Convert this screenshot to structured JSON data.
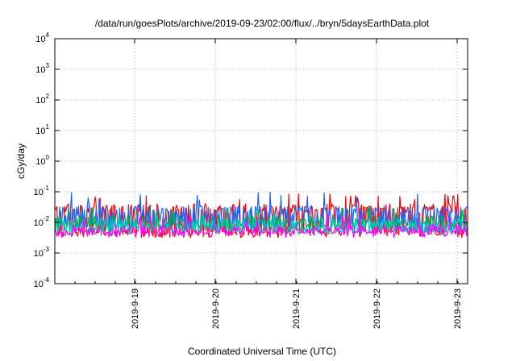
{
  "chart_data": {
    "type": "line",
    "title": "/data/run/goesPlots/archive/2019-09-23/02:00/flux/../bryn/5daysEarthData.plot",
    "xlabel": "Coordinated Universal Time (UTC)",
    "ylabel": "cGy/day",
    "yscale": "log",
    "ylim": [
      0.0001,
      10000
    ],
    "xlim": [
      "2019-09-18 02:00",
      "2019-09-23 02:00"
    ],
    "x_ticks": [
      "2019-9-19",
      "2019-9-20",
      "2019-9-21",
      "2019-9-22",
      "2019-9-23"
    ],
    "y_ticks": [
      {
        "value": 0.0001,
        "base": "10",
        "exp": "-4"
      },
      {
        "value": 0.001,
        "base": "10",
        "exp": "-3"
      },
      {
        "value": 0.01,
        "base": "10",
        "exp": "-2"
      },
      {
        "value": 0.1,
        "base": "10",
        "exp": "-1"
      },
      {
        "value": 1,
        "base": "10",
        "exp": "0"
      },
      {
        "value": 10,
        "base": "10",
        "exp": "1"
      },
      {
        "value": 100,
        "base": "10",
        "exp": "2"
      },
      {
        "value": 1000,
        "base": "10",
        "exp": "3"
      },
      {
        "value": 10000,
        "base": "10",
        "exp": "4"
      }
    ],
    "grid": true,
    "series": [
      {
        "color": "#ff0000",
        "base": 0.03,
        "low": 0.004,
        "spike": 0.08
      },
      {
        "color": "#1e64ff",
        "base": 0.025,
        "low": 0.008,
        "spike": 0.09
      },
      {
        "color": "#00b050",
        "base": 0.012,
        "low": 0.006,
        "spike": 0.03
      },
      {
        "color": "#00c8c8",
        "base": 0.01,
        "low": 0.005,
        "spike": 0.025
      },
      {
        "color": "#ff00ff",
        "base": 0.006,
        "low": 0.004,
        "spike": 0.02
      }
    ]
  }
}
